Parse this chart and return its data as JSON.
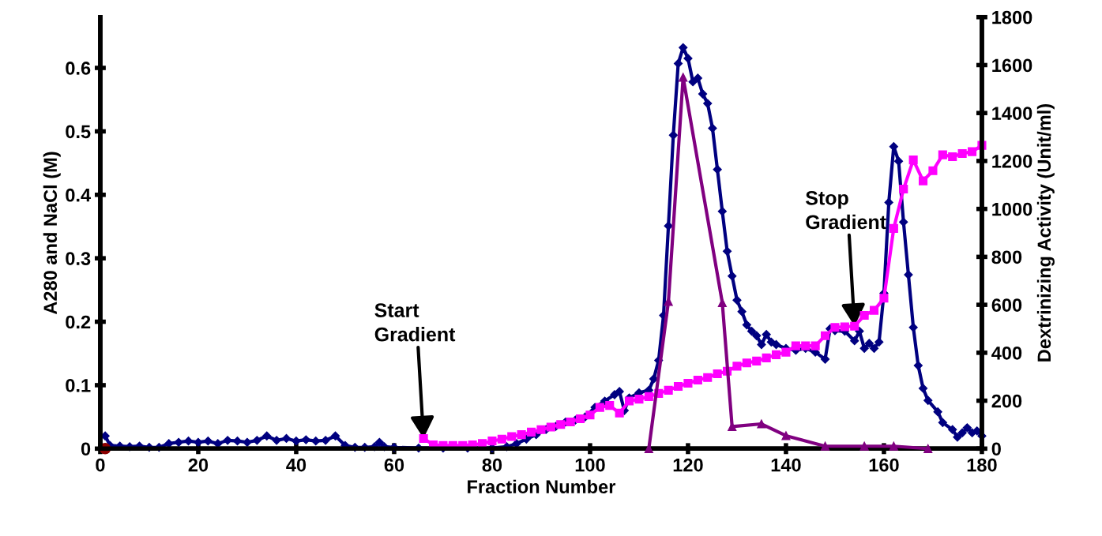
{
  "chart_data": {
    "type": "line",
    "xlabel": "Fraction Number",
    "ylabel": "A280 and NaCl (M)",
    "y2label": "Dextrinizing Activity (Unit/ml)",
    "xlim": [
      0,
      180
    ],
    "xticks": [
      0,
      20,
      40,
      60,
      80,
      100,
      120,
      140,
      160,
      180
    ],
    "ylim": [
      0,
      0.68
    ],
    "yticks": [
      0,
      0.1,
      0.2,
      0.3,
      0.4,
      0.5,
      0.6
    ],
    "y2lim": [
      0,
      1800
    ],
    "y2ticks": [
      0,
      200,
      400,
      600,
      800,
      1000,
      1200,
      1400,
      1600,
      1800
    ],
    "grid": false,
    "legend": false,
    "series": [
      {
        "color": "#000080",
        "marker": "diamond",
        "x": [
          1,
          2,
          4,
          6,
          8,
          10,
          12,
          14,
          16,
          18,
          20,
          22,
          24,
          26,
          28,
          30,
          32,
          34,
          36,
          38,
          40,
          42,
          44,
          46,
          48,
          50,
          52,
          54,
          56,
          57,
          58,
          60,
          65,
          70,
          75,
          80,
          83,
          85,
          87,
          89,
          91,
          93,
          95,
          97,
          99,
          101,
          103,
          105,
          106,
          107,
          108,
          110,
          112,
          113,
          114,
          115,
          116,
          117,
          118,
          119,
          120,
          121,
          122,
          123,
          124,
          125,
          126,
          127,
          128,
          129,
          130,
          131,
          132,
          133,
          134,
          135,
          136,
          137,
          138,
          140,
          142,
          144,
          146,
          148,
          149,
          150,
          152,
          154,
          155,
          156,
          157,
          158,
          159,
          160,
          161,
          162,
          163,
          164,
          165,
          166,
          167,
          168,
          169,
          171,
          172,
          174,
          175,
          176,
          177,
          178,
          179,
          180
        ],
        "values": [
          0.02,
          0.005,
          0.004,
          0.003,
          0.004,
          0.002,
          0.002,
          0.008,
          0.01,
          0.012,
          0.01,
          0.012,
          0.008,
          0.013,
          0.012,
          0.01,
          0.013,
          0.02,
          0.013,
          0.016,
          0.012,
          0.014,
          0.012,
          0.013,
          0.02,
          0.005,
          0.002,
          0.002,
          0.003,
          0.01,
          0.003,
          0.002,
          0.001,
          0.001,
          0.001,
          0.001,
          0.003,
          0.008,
          0.015,
          0.022,
          0.03,
          0.035,
          0.042,
          0.045,
          0.05,
          0.065,
          0.075,
          0.085,
          0.09,
          0.06,
          0.08,
          0.088,
          0.092,
          0.11,
          0.139,
          0.21,
          0.351,
          0.494,
          0.607,
          0.632,
          0.615,
          0.578,
          0.584,
          0.559,
          0.544,
          0.505,
          0.44,
          0.374,
          0.311,
          0.272,
          0.234,
          0.216,
          0.195,
          0.185,
          0.178,
          0.164,
          0.18,
          0.168,
          0.164,
          0.158,
          0.155,
          0.158,
          0.152,
          0.141,
          0.189,
          0.186,
          0.185,
          0.17,
          0.185,
          0.158,
          0.166,
          0.158,
          0.168,
          0.245,
          0.388,
          0.476,
          0.453,
          0.357,
          0.274,
          0.191,
          0.131,
          0.095,
          0.076,
          0.058,
          0.041,
          0.03,
          0.018,
          0.025,
          0.033,
          0.025,
          0.028,
          0.02
        ]
      },
      {
        "color": "#ff00ff",
        "marker": "square",
        "x": [
          66,
          68,
          70,
          72,
          74,
          76,
          78,
          80,
          82,
          84,
          86,
          88,
          90,
          92,
          94,
          96,
          98,
          100,
          102,
          104,
          106,
          108,
          110,
          112,
          114,
          116,
          118,
          120,
          122,
          124,
          126,
          128,
          130,
          132,
          134,
          136,
          138,
          140,
          142,
          144,
          146,
          148,
          150,
          152,
          154,
          156,
          158,
          160,
          162,
          164,
          166,
          168,
          170,
          172,
          174,
          176,
          178,
          180
        ],
        "values": [
          0.016,
          0.006,
          0.005,
          0.005,
          0.005,
          0.006,
          0.008,
          0.012,
          0.015,
          0.019,
          0.022,
          0.026,
          0.03,
          0.034,
          0.038,
          0.042,
          0.047,
          0.053,
          0.065,
          0.068,
          0.056,
          0.075,
          0.078,
          0.082,
          0.087,
          0.092,
          0.098,
          0.103,
          0.108,
          0.112,
          0.118,
          0.122,
          0.13,
          0.135,
          0.138,
          0.143,
          0.148,
          0.152,
          0.162,
          0.162,
          0.162,
          0.178,
          0.191,
          0.192,
          0.193,
          0.21,
          0.218,
          0.237,
          0.347,
          0.409,
          0.455,
          0.422,
          0.438,
          0.463,
          0.46,
          0.465,
          0.468,
          0.478
        ]
      },
      {
        "color": "#800080",
        "marker": "triangle",
        "axis": "y2",
        "x": [
          112,
          116,
          119,
          127,
          129,
          135,
          140,
          148,
          156,
          162,
          169
        ],
        "values": [
          0,
          614,
          1549,
          609,
          92,
          103,
          54,
          10,
          10,
          10,
          0
        ]
      },
      {
        "type": "scatter",
        "color": "#8b0000",
        "marker": "circle",
        "x": [
          1
        ],
        "values": [
          0
        ]
      }
    ],
    "annotations": [
      {
        "text": "Start\nGradient",
        "x": 66,
        "y": 0.016
      },
      {
        "text": "Stop\nGradient",
        "x": 154,
        "y": 0.193
      }
    ]
  }
}
